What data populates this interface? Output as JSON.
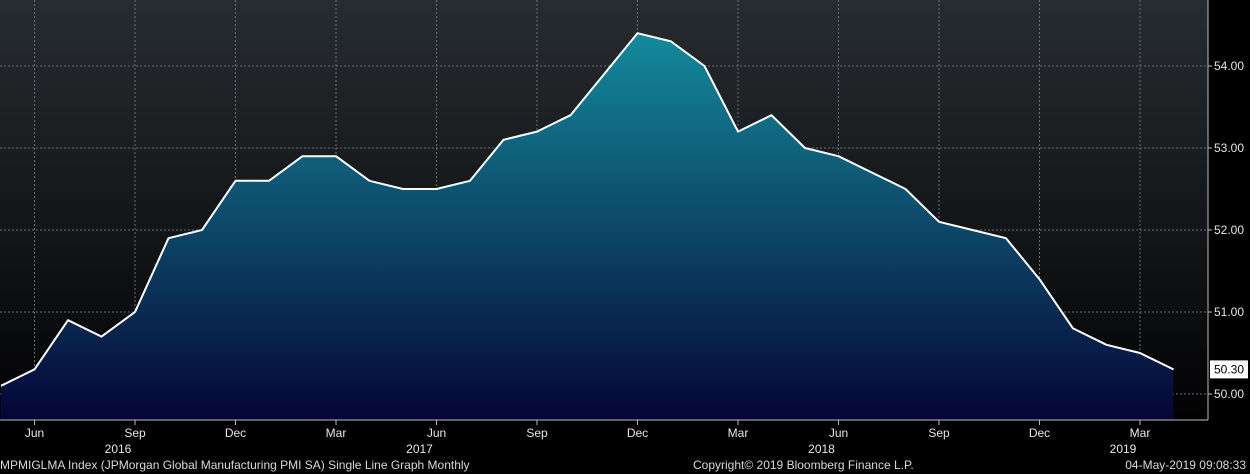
{
  "chart_data": {
    "type": "area",
    "x": [
      "2016-05",
      "2016-06",
      "2016-07",
      "2016-08",
      "2016-09",
      "2016-10",
      "2016-11",
      "2016-12",
      "2017-01",
      "2017-02",
      "2017-03",
      "2017-04",
      "2017-05",
      "2017-06",
      "2017-07",
      "2017-08",
      "2017-09",
      "2017-10",
      "2017-11",
      "2017-12",
      "2018-01",
      "2018-02",
      "2018-03",
      "2018-04",
      "2018-05",
      "2018-06",
      "2018-07",
      "2018-08",
      "2018-09",
      "2018-10",
      "2018-11",
      "2018-12",
      "2019-01",
      "2019-02",
      "2019-03",
      "2019-04"
    ],
    "series": [
      {
        "values": [
          50.1,
          50.3,
          50.9,
          50.7,
          51.0,
          51.9,
          52.0,
          52.6,
          52.6,
          52.9,
          52.9,
          52.6,
          52.5,
          52.5,
          52.6,
          53.1,
          53.2,
          53.4,
          53.9,
          54.4,
          54.3,
          54.0,
          53.2,
          53.4,
          53.0,
          52.9,
          52.7,
          52.5,
          52.1,
          52.0,
          51.9,
          51.4,
          50.8,
          50.6,
          50.5,
          50.3
        ]
      }
    ],
    "ylim": [
      49.7,
      54.8
    ],
    "y_ticks": [
      "50.00",
      "51.00",
      "52.00",
      "53.00",
      "54.00"
    ],
    "x_ticks": [
      {
        "x": "2016-06",
        "label": "Jun"
      },
      {
        "x": "2016-09",
        "label": "Sep"
      },
      {
        "x": "2016-12",
        "label": "Dec"
      },
      {
        "x": "2017-03",
        "label": "Mar"
      },
      {
        "x": "2017-06",
        "label": "Jun"
      },
      {
        "x": "2017-09",
        "label": "Sep"
      },
      {
        "x": "2017-12",
        "label": "Dec"
      },
      {
        "x": "2018-03",
        "label": "Mar"
      },
      {
        "x": "2018-06",
        "label": "Jun"
      },
      {
        "x": "2018-09",
        "label": "Sep"
      },
      {
        "x": "2018-12",
        "label": "Dec"
      },
      {
        "x": "2019-03",
        "label": "Mar"
      }
    ],
    "year_labels": [
      {
        "x": "2016-09",
        "label": "2016"
      },
      {
        "x": "2017-06",
        "label": "2017"
      },
      {
        "x": "2018-06",
        "label": "2018"
      },
      {
        "x": "2019-03",
        "label": "2019"
      }
    ],
    "last_value_label": "50.30",
    "grid": true,
    "line_color": "#ffffff",
    "fill_top_color": "#148a9c",
    "fill_bottom_color": "#050535",
    "background_top_color": "#272c30",
    "background_bottom_color": "#020203"
  },
  "footer": {
    "left": "MPMIGLMA Index (JPMorgan Global Manufacturing PMI SA) Single Line Graph  Monthly",
    "middle": "Copyright© 2019 Bloomberg Finance L.P.",
    "right": "04-May-2019 09:08:33"
  }
}
